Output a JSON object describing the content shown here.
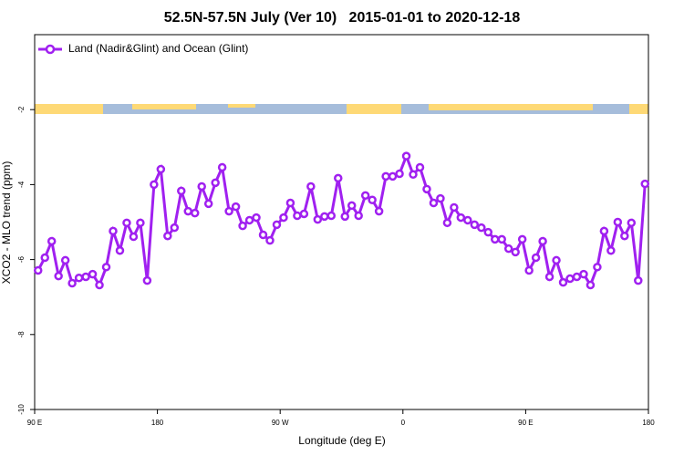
{
  "chart_data": {
    "type": "line",
    "title": "52.5N-57.5N July (Ver 10)   2015-01-01 to 2020-12-18",
    "x_label": "Longitude (deg E)",
    "y_label": "XCO2 - MLO trend (ppm)",
    "x": [
      92.5,
      97.5,
      102.5,
      107.5,
      112.5,
      117.5,
      122.5,
      127.5,
      132.5,
      137.5,
      142.5,
      147.5,
      152.5,
      157.5,
      162.5,
      167.5,
      172.5,
      177.5,
      182.5,
      187.5,
      192.5,
      197.5,
      202.5,
      207.5,
      212.5,
      217.5,
      222.5,
      227.5,
      232.5,
      237.5,
      242.5,
      247.5,
      252.5,
      257.5,
      262.5,
      267.5,
      272.5,
      277.5,
      282.5,
      287.5,
      292.5,
      297.5,
      302.5,
      307.5,
      312.5,
      317.5,
      322.5,
      327.5,
      332.5,
      337.5,
      342.5,
      347.5,
      352.5,
      357.5,
      362.5,
      367.5,
      372.5,
      377.5,
      382.5,
      387.5,
      392.5,
      397.5,
      402.5,
      407.5,
      412.5,
      417.5,
      422.5,
      427.5,
      432.5,
      437.5,
      442.5,
      447.5,
      452.5,
      457.5,
      462.5,
      467.5,
      472.5,
      477.5,
      482.5,
      487.5,
      492.5,
      497.5,
      502.5,
      507.5,
      512.5,
      517.5,
      522.5,
      527.5,
      532.5,
      537.5
    ],
    "series": [
      {
        "name": "Land (Nadir&Glint) and Ocean (Glint)",
        "color": "#a020f0",
        "values": [
          -6.29,
          -5.95,
          -5.51,
          -6.44,
          -6.02,
          -6.63,
          -6.49,
          -6.46,
          -6.39,
          -6.68,
          -6.2,
          -5.24,
          -5.76,
          -5.02,
          -5.39,
          -5.02,
          -6.56,
          -4.0,
          -3.59,
          -5.37,
          -5.15,
          -4.17,
          -4.71,
          -4.76,
          -4.05,
          -4.51,
          -3.95,
          -3.54,
          -4.71,
          -4.59,
          -5.1,
          -4.95,
          -4.88,
          -5.34,
          -5.49,
          -5.07,
          -4.88,
          -4.49,
          -4.83,
          -4.78,
          -4.05,
          -4.93,
          -4.85,
          -4.83,
          -3.83,
          -4.85,
          -4.56,
          -4.83,
          -4.29,
          -4.41,
          -4.71,
          -3.78,
          -3.78,
          -3.71,
          -3.24,
          -3.73,
          -3.54,
          -4.12,
          -4.49,
          -4.37,
          -5.02,
          -4.61,
          -4.88,
          -4.95,
          -5.07,
          -5.15,
          -5.27,
          -5.46,
          -5.46,
          -5.71,
          -5.8,
          -5.46,
          -6.29,
          -5.95,
          -5.51,
          -6.46,
          -6.02,
          -6.61,
          -6.51,
          -6.46,
          -6.39,
          -6.68,
          -6.2,
          -5.24,
          -5.76,
          -5.0,
          -5.37,
          -5.02,
          -6.56,
          -3.98
        ]
      }
    ],
    "xlim": [
      90,
      540
    ],
    "xticks": [
      {
        "value": 90,
        "label": "90 E"
      },
      180,
      {
        "value": 270,
        "label": "90 W"
      },
      {
        "value": 360,
        "label": "0"
      },
      {
        "value": 450,
        "label": "90 E"
      },
      {
        "value": 540,
        "label": "180"
      }
    ],
    "ylim": [
      -10,
      0
    ],
    "yticks": [
      -10,
      -8,
      -6,
      -4,
      -2
    ],
    "legend": "top-left"
  }
}
